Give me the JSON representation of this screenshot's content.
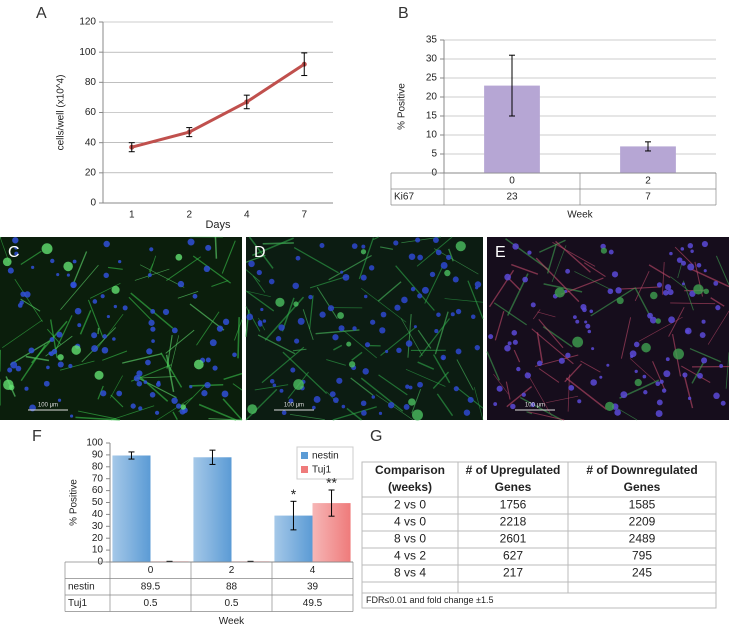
{
  "panel_labels": [
    "A",
    "B",
    "F",
    "G"
  ],
  "chart_data": [
    {
      "type": "line",
      "x_label": "Days",
      "y_label": "cells/well (x10^4)",
      "categories": [
        "1",
        "2",
        "4",
        "7"
      ],
      "series": [
        {
          "color": "#c0504d",
          "values": [
            37,
            47,
            67,
            92
          ],
          "errors": [
            3,
            3,
            4.5,
            7.5
          ]
        }
      ],
      "ylim": [
        0,
        120
      ],
      "yticks": [
        0,
        20,
        40,
        60,
        80,
        100,
        120
      ],
      "grid": true
    },
    {
      "type": "bar",
      "table": true,
      "x_label": "Week",
      "y_label": "% Positive",
      "categories": [
        "0",
        "2"
      ],
      "series": [
        {
          "name": "Ki67",
          "color": "#b6a6d4",
          "values": [
            23,
            7
          ],
          "errors": [
            8,
            1.2
          ]
        }
      ],
      "ylim": [
        0,
        35
      ],
      "yticks": [
        0,
        5,
        10,
        15,
        20,
        25,
        30,
        35
      ],
      "grid": true
    },
    {
      "type": "bar",
      "table": true,
      "x_label": "Week",
      "y_label": "% Positive",
      "categories": [
        "0",
        "2",
        "4"
      ],
      "series": [
        {
          "name": "nestin",
          "color": "#5b9bd5",
          "values": [
            89.5,
            88,
            39
          ],
          "errors": [
            3,
            6,
            12
          ]
        },
        {
          "name": "Tuj1",
          "color": "#ef7b7b",
          "values": [
            0.5,
            0.5,
            49.5
          ],
          "errors": [
            0,
            0,
            11
          ]
        }
      ],
      "ylim": [
        0,
        100
      ],
      "yticks": [
        0,
        10,
        20,
        30,
        40,
        50,
        60,
        70,
        80,
        90,
        100
      ],
      "grid": false,
      "legend": "top-right",
      "annotations": [
        "*",
        "**"
      ]
    }
  ],
  "micrographs": [
    {
      "label": "C",
      "scale_bar": "100 μm"
    },
    {
      "label": "D",
      "scale_bar": "100 μm"
    },
    {
      "label": "E",
      "scale_bar": "100 μm"
    }
  ],
  "table": {
    "header": [
      [
        "Comparison",
        "(weeks)"
      ],
      [
        "# of Upregulated",
        "Genes"
      ],
      [
        "# of Downregulated",
        "Genes"
      ]
    ],
    "rows": [
      [
        "2 vs 0",
        1756,
        1585
      ],
      [
        "4 vs 0",
        2218,
        2209
      ],
      [
        "8 vs 0",
        2601,
        2489
      ],
      [
        "4 vs 2",
        627,
        795
      ],
      [
        "8 vs 4",
        217,
        245
      ]
    ],
    "footnote": "FDR≤0.01 and fold change ±1.5"
  }
}
